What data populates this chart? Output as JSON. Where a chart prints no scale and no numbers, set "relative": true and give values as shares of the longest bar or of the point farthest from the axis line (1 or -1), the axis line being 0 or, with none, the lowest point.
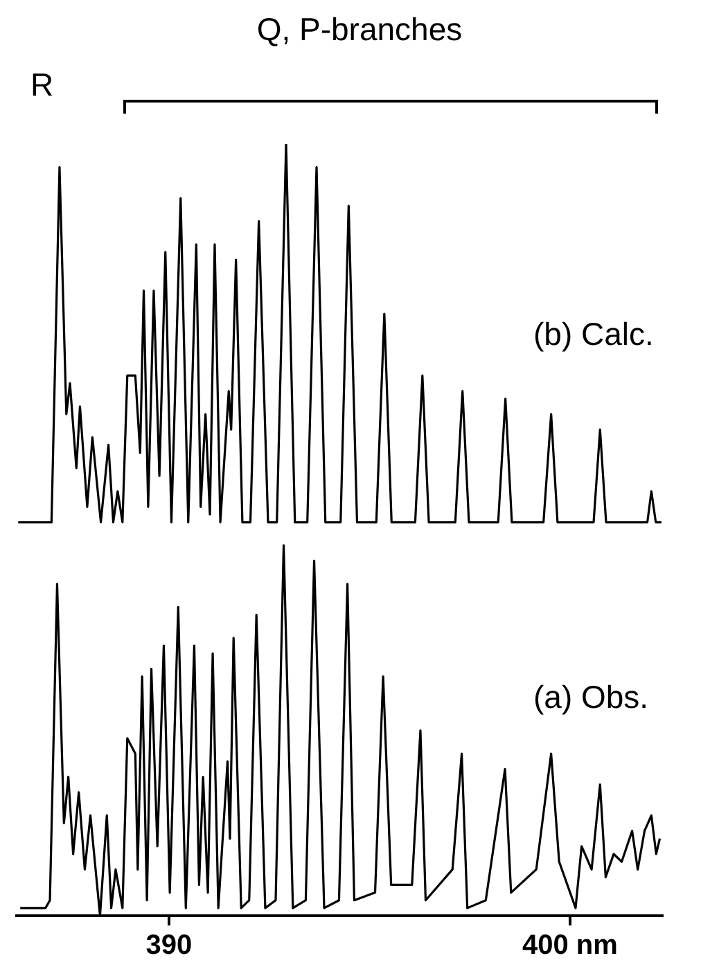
{
  "chart_data": {
    "type": "line",
    "title": "Q, P-branches",
    "annotations": [
      "R"
    ],
    "relative": true,
    "tick_labels": "x",
    "xlim": [
      386.2,
      402.3
    ],
    "xticks": [
      390,
      {
        "value": 400,
        "label": "400 nm"
      }
    ],
    "series": [
      {
        "name": "(b) Calc.",
        "color": "#000000",
        "x": [
          386.24,
          387.07,
          387.27,
          387.44,
          387.53,
          387.69,
          387.78,
          387.96,
          388.09,
          388.3,
          388.49,
          388.61,
          388.72,
          388.84,
          388.96,
          389.16,
          389.28,
          389.37,
          389.48,
          389.62,
          389.76,
          389.91,
          390.06,
          390.29,
          390.48,
          390.68,
          390.79,
          390.91,
          391.02,
          391.14,
          391.28,
          391.49,
          391.55,
          391.67,
          391.83,
          392.03,
          392.24,
          392.47,
          392.69,
          392.92,
          393.14,
          393.45,
          393.68,
          393.9,
          394.28,
          394.48,
          394.69,
          395.17,
          395.37,
          395.55,
          396.14,
          396.32,
          396.48,
          397.14,
          397.32,
          397.48,
          398.21,
          398.39,
          398.55,
          399.34,
          399.53,
          399.69,
          400.59,
          400.75,
          400.9,
          401.93,
          402.03,
          402.14,
          402.28
        ],
        "values": [
          0.51,
          0.51,
          0.97,
          0.65,
          0.69,
          0.58,
          0.66,
          0.53,
          0.62,
          0.51,
          0.61,
          0.51,
          0.55,
          0.51,
          0.7,
          0.7,
          0.6,
          0.81,
          0.53,
          0.81,
          0.57,
          0.86,
          0.51,
          0.93,
          0.51,
          0.87,
          0.53,
          0.65,
          0.52,
          0.87,
          0.51,
          0.68,
          0.63,
          0.85,
          0.51,
          0.51,
          0.9,
          0.51,
          0.51,
          1,
          0.51,
          0.51,
          0.97,
          0.51,
          0.51,
          0.92,
          0.51,
          0.51,
          0.78,
          0.51,
          0.51,
          0.7,
          0.51,
          0.51,
          0.68,
          0.51,
          0.51,
          0.67,
          0.51,
          0.51,
          0.65,
          0.51,
          0.51,
          0.63,
          0.51,
          0.51,
          0.55,
          0.51,
          0.51
        ]
      },
      {
        "name": "(a) Obs.",
        "color": "#000000",
        "x": [
          386.29,
          386.92,
          387.03,
          387.21,
          387.38,
          387.49,
          387.61,
          387.75,
          387.9,
          388.04,
          388.28,
          388.45,
          388.56,
          388.67,
          388.84,
          388.96,
          389.16,
          389.22,
          389.33,
          389.45,
          389.56,
          389.71,
          389.87,
          390.02,
          390.23,
          390.42,
          390.63,
          390.75,
          390.85,
          390.97,
          391.09,
          391.23,
          391.46,
          391.52,
          391.61,
          391.8,
          392,
          392.18,
          392.4,
          392.66,
          392.86,
          393.09,
          393.41,
          393.62,
          393.87,
          394.24,
          394.45,
          394.62,
          395.14,
          395.34,
          395.54,
          396.06,
          396.27,
          396.4,
          397.07,
          397.3,
          397.44,
          397.9,
          398.38,
          398.53,
          399.16,
          399.53,
          399.73,
          400.14,
          400.29,
          400.54,
          400.75,
          400.89,
          401.09,
          401.29,
          401.55,
          401.69,
          401.86,
          402.03,
          402.15,
          402.24
        ],
        "values": [
          0.01,
          0.01,
          0.02,
          0.43,
          0.12,
          0.18,
          0.08,
          0.16,
          0.06,
          0.13,
          0,
          0.13,
          0.01,
          0.06,
          0.01,
          0.23,
          0.21,
          0.06,
          0.31,
          0.02,
          0.32,
          0.09,
          0.35,
          0.03,
          0.4,
          0.01,
          0.35,
          0.04,
          0.18,
          0.03,
          0.34,
          0.01,
          0.2,
          0.1,
          0.36,
          0.01,
          0.02,
          0.39,
          0.01,
          0.02,
          0.48,
          0.01,
          0.02,
          0.46,
          0.01,
          0.02,
          0.43,
          0.02,
          0.03,
          0.31,
          0.04,
          0.04,
          0.24,
          0.02,
          0.06,
          0.21,
          0.01,
          0.02,
          0.19,
          0.03,
          0.06,
          0.21,
          0.07,
          0.01,
          0.09,
          0.06,
          0.17,
          0.05,
          0.08,
          0.07,
          0.11,
          0.06,
          0.11,
          0.13,
          0.08,
          0.1
        ]
      }
    ]
  }
}
